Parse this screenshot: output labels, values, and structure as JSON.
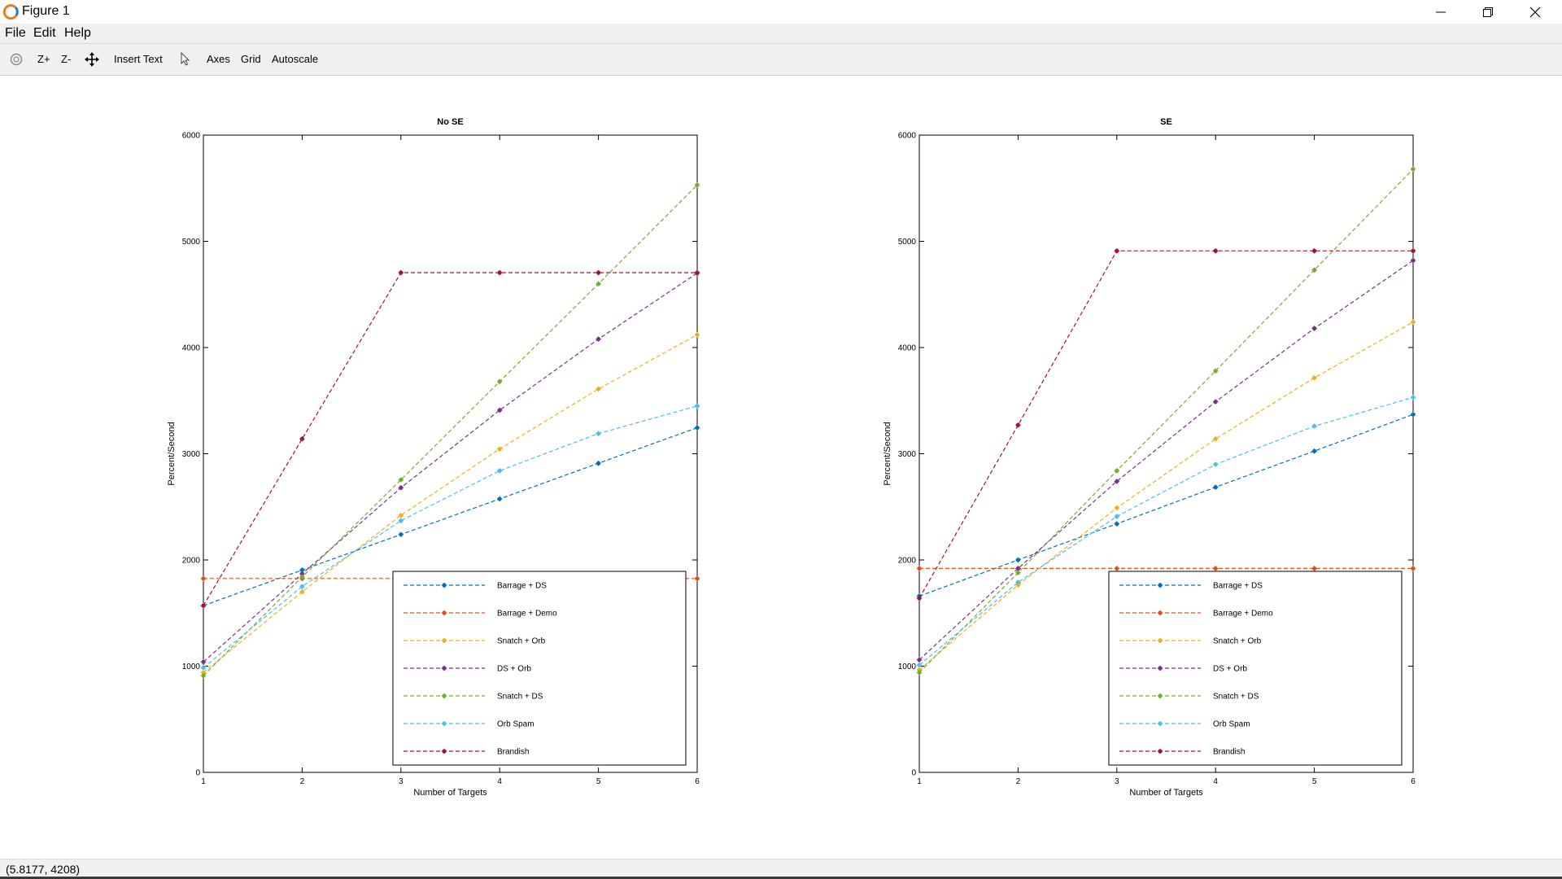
{
  "window": {
    "title": "Figure 1"
  },
  "menu": {
    "file": "File",
    "edit": "Edit",
    "help": "Help"
  },
  "toolbar": {
    "zoom_in": "Z+",
    "zoom_out": "Z-",
    "insert_text": "Insert Text",
    "axes": "Axes",
    "grid": "Grid",
    "autoscale": "Autoscale"
  },
  "status": {
    "coords": "(5.8177, 4208)"
  },
  "colors": {
    "Barrage + DS": "#0072bd",
    "Barrage + Demo": "#d95319",
    "Snatch + Orb": "#edb120",
    "DS + Orb": "#7e2f8e",
    "Snatch + DS": "#77ac30",
    "Orb Spam": "#4dbeee",
    "Brandish": "#a2142f"
  },
  "chart_data": [
    {
      "type": "line",
      "title": "No SE",
      "xlabel": "Number of Targets",
      "ylabel": "Percent/Second",
      "x": [
        1,
        2,
        3,
        4,
        5,
        6
      ],
      "xlim": [
        1,
        6
      ],
      "ylim": [
        0,
        6000
      ],
      "xticks": [
        "1",
        "2",
        "3",
        "4",
        "5",
        "6"
      ],
      "yticks": [
        "0",
        "1000",
        "2000",
        "3000",
        "4000",
        "5000",
        "6000"
      ],
      "grid": false,
      "legend_position": "bottom-right",
      "series": [
        {
          "name": "Barrage + DS",
          "values": [
            1570,
            1905,
            2240,
            2575,
            2910,
            3245
          ]
        },
        {
          "name": "Barrage + Demo",
          "values": [
            1825,
            1825,
            1825,
            1825,
            1825,
            1825
          ]
        },
        {
          "name": "Snatch + Orb",
          "values": [
            940,
            1700,
            2420,
            3045,
            3610,
            4120
          ]
        },
        {
          "name": "DS + Orb",
          "values": [
            1040,
            1870,
            2680,
            3410,
            4080,
            4700
          ]
        },
        {
          "name": "Snatch + DS",
          "values": [
            910,
            1840,
            2755,
            3680,
            4600,
            5530
          ]
        },
        {
          "name": "Orb Spam",
          "values": [
            985,
            1750,
            2370,
            2840,
            3190,
            3450
          ]
        },
        {
          "name": "Brandish",
          "values": [
            1570,
            3140,
            4705,
            4705,
            4705,
            4705
          ]
        }
      ]
    },
    {
      "type": "line",
      "title": "SE",
      "xlabel": "Number of Targets",
      "ylabel": "Percent/Second",
      "x": [
        1,
        2,
        3,
        4,
        5,
        6
      ],
      "xlim": [
        1,
        6
      ],
      "ylim": [
        0,
        6000
      ],
      "xticks": [
        "1",
        "2",
        "3",
        "4",
        "5",
        "6"
      ],
      "yticks": [
        "0",
        "1000",
        "2000",
        "3000",
        "4000",
        "5000",
        "6000"
      ],
      "grid": false,
      "legend_position": "bottom-right",
      "series": [
        {
          "name": "Barrage + DS",
          "values": [
            1660,
            2000,
            2340,
            2685,
            3025,
            3370
          ]
        },
        {
          "name": "Barrage + Demo",
          "values": [
            1920,
            1920,
            1920,
            1920,
            1920,
            1920
          ]
        },
        {
          "name": "Snatch + Orb",
          "values": [
            965,
            1765,
            2490,
            3140,
            3715,
            4240
          ]
        },
        {
          "name": "DS + Orb",
          "values": [
            1060,
            1920,
            2740,
            3490,
            4180,
            4820
          ]
        },
        {
          "name": "Snatch + DS",
          "values": [
            940,
            1880,
            2840,
            3780,
            4730,
            5680
          ]
        },
        {
          "name": "Orb Spam",
          "values": [
            1010,
            1790,
            2410,
            2900,
            3260,
            3530
          ]
        },
        {
          "name": "Brandish",
          "values": [
            1640,
            3270,
            4910,
            4910,
            4910,
            4910
          ]
        }
      ]
    }
  ]
}
